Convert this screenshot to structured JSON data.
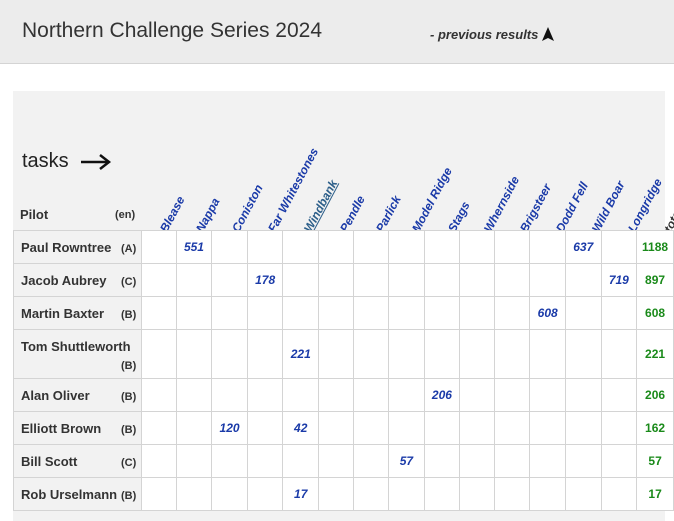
{
  "header": {
    "title": "Northern Challenge Series 2024",
    "previous_results": "- previous results"
  },
  "table": {
    "tasks_label": "tasks",
    "pilot_header": "Pilot",
    "class_header": "(en)",
    "columns": [
      "Blease",
      "Nappa",
      "Coniston",
      "Far Whitestones",
      "Windbank",
      "Pendle",
      "Parlick",
      "Model Ridge",
      "Stags",
      "Whernside",
      "Brigsteer",
      "Dodd Fell",
      "Wild Boar",
      "Longridge",
      "total"
    ],
    "rows": [
      {
        "name": "Paul Rowntree",
        "class": "(A)",
        "scores": [
          "",
          "551",
          "",
          "",
          "",
          "",
          "",
          "",
          "",
          "",
          "",
          "",
          "637",
          "",
          "1188"
        ]
      },
      {
        "name": "Jacob Aubrey",
        "class": "(C)",
        "scores": [
          "",
          "",
          "",
          "178",
          "",
          "",
          "",
          "",
          "",
          "",
          "",
          "",
          "",
          "719",
          "897"
        ]
      },
      {
        "name": "Martin Baxter",
        "class": "(B)",
        "scores": [
          "",
          "",
          "",
          "",
          "",
          "",
          "",
          "",
          "",
          "",
          "",
          "608",
          "",
          "",
          "608"
        ]
      },
      {
        "name": "Tom Shuttleworth",
        "class": "(B)",
        "scores": [
          "",
          "",
          "",
          "",
          "221",
          "",
          "",
          "",
          "",
          "",
          "",
          "",
          "",
          "",
          "221"
        ]
      },
      {
        "name": "Alan Oliver",
        "class": "(B)",
        "scores": [
          "",
          "",
          "",
          "",
          "",
          "",
          "",
          "",
          "206",
          "",
          "",
          "",
          "",
          "",
          "206"
        ]
      },
      {
        "name": "Elliott Brown",
        "class": "(B)",
        "scores": [
          "",
          "",
          "120",
          "",
          "42",
          "",
          "",
          "",
          "",
          "",
          "",
          "",
          "",
          "",
          "162"
        ]
      },
      {
        "name": "Bill Scott",
        "class": "(C)",
        "scores": [
          "",
          "",
          "",
          "",
          "",
          "",
          "",
          "57",
          "",
          "",
          "",
          "",
          "",
          "",
          "57"
        ]
      },
      {
        "name": "Rob Urselmann",
        "class": "(B)",
        "scores": [
          "",
          "",
          "",
          "",
          "17",
          "",
          "",
          "",
          "",
          "",
          "",
          "",
          "",
          "",
          "17"
        ]
      }
    ]
  }
}
